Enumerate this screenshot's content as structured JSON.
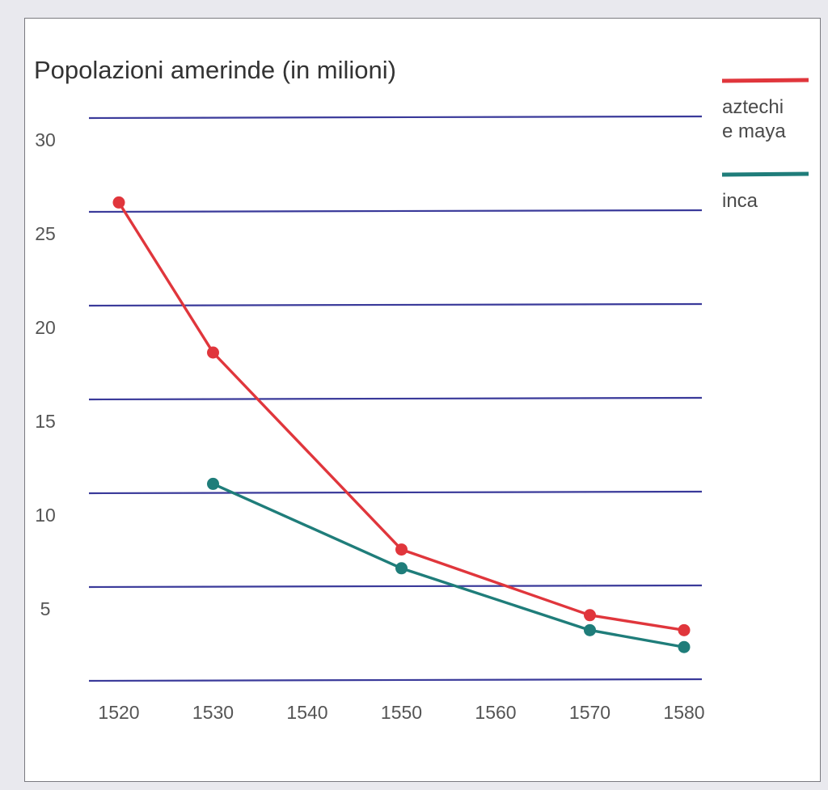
{
  "chart_data": {
    "type": "line",
    "title": "Popolazioni amerinde (in milioni)",
    "xlabel": "",
    "ylabel": "",
    "categories": [
      "1520",
      "1530",
      "1540",
      "1550",
      "1560",
      "1570",
      "1580"
    ],
    "x": [
      1520,
      1530,
      1550,
      1570,
      1580
    ],
    "ylim": [
      0,
      30
    ],
    "yticks": [
      5,
      10,
      15,
      20,
      25,
      30
    ],
    "grid": true,
    "legend_position": "right",
    "series": [
      {
        "name": "aztechi\ne maya",
        "name_lines": [
          "aztechi",
          "e maya"
        ],
        "color": "#e0363c",
        "points": [
          [
            1520,
            25.5
          ],
          [
            1530,
            17.5
          ],
          [
            1550,
            7
          ],
          [
            1570,
            3.5
          ],
          [
            1580,
            2.7
          ]
        ]
      },
      {
        "name": "inca",
        "name_lines": [
          "inca"
        ],
        "color": "#1f7d7a",
        "points": [
          [
            1530,
            10.5
          ],
          [
            1550,
            6
          ],
          [
            1570,
            2.7
          ],
          [
            1580,
            1.8
          ]
        ]
      }
    ],
    "colors": {
      "grid": "#3a3a9a",
      "axis_text": "#555555"
    }
  }
}
